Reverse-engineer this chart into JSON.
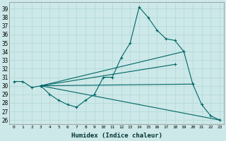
{
  "xlabel": "Humidex (Indice chaleur)",
  "background_color": "#cde8e8",
  "line_color": "#006666",
  "grid_color": "#b0d8d8",
  "xlim": [
    -0.5,
    23.5
  ],
  "ylim": [
    25.5,
    39.8
  ],
  "yticks": [
    26,
    27,
    28,
    29,
    30,
    31,
    32,
    33,
    34,
    35,
    36,
    37,
    38,
    39
  ],
  "xticks": [
    0,
    1,
    2,
    3,
    4,
    5,
    6,
    7,
    8,
    9,
    10,
    11,
    12,
    13,
    14,
    15,
    16,
    17,
    18,
    19,
    20,
    21,
    22,
    23
  ],
  "series": [
    {
      "x": [
        0,
        1,
        2,
        3,
        4,
        5,
        6,
        7,
        8,
        9,
        10,
        11,
        12,
        13,
        14,
        15,
        16,
        17,
        18,
        19,
        20,
        21,
        22,
        23
      ],
      "y": [
        30.5,
        30.5,
        29.8,
        30.0,
        29.0,
        28.3,
        27.8,
        27.5,
        28.3,
        29.0,
        31.0,
        31.0,
        33.3,
        35.0,
        39.2,
        38.0,
        36.5,
        35.5,
        35.3,
        34.0,
        30.2,
        27.8,
        26.5,
        26.0
      ]
    },
    {
      "x": [
        3,
        23
      ],
      "y": [
        30.0,
        26.0
      ]
    },
    {
      "x": [
        3,
        19
      ],
      "y": [
        30.0,
        34.0
      ]
    },
    {
      "x": [
        3,
        20
      ],
      "y": [
        30.0,
        30.2
      ]
    },
    {
      "x": [
        3,
        18
      ],
      "y": [
        30.0,
        32.5
      ]
    }
  ]
}
